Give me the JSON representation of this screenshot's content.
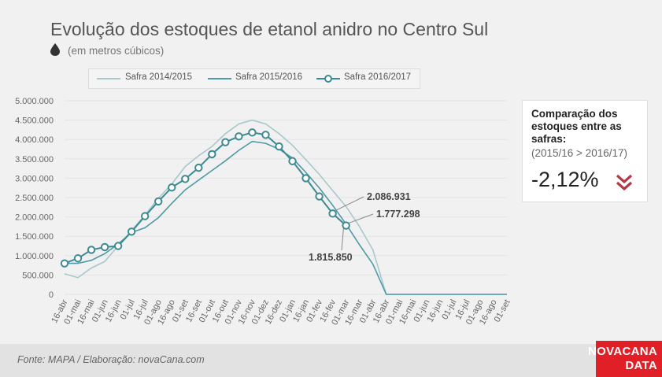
{
  "header": {
    "title": "Evolução dos estoques de etanol anidro no Centro Sul",
    "subtitle": "(em metros cúbicos)"
  },
  "comparison": {
    "title": "Comparação dos estoques entre as safras:",
    "subtitle": "(2015/16 > 2016/17)",
    "value": "-2,12%",
    "arrow_color": "#b03a48"
  },
  "footer": {
    "source": "Fonte: MAPA  / Elaboração: novaCana.com",
    "brand_line1": "NOVACANA",
    "brand_line2": "DATA",
    "brand_color": "#e01f26"
  },
  "chart_data": {
    "type": "line",
    "categories": [
      "16-abr",
      "01-mai",
      "16-mai",
      "01-jun",
      "16-jun",
      "01-jul",
      "16-jul",
      "01-ago",
      "16-ago",
      "01-set",
      "16-set",
      "01-out",
      "16-out",
      "01-nov",
      "16-nov",
      "01-dez",
      "16-dez",
      "01-jan",
      "16-jan",
      "01-fev",
      "16-fev",
      "01-mar",
      "16-mar",
      "01-abr",
      "16-abr",
      "01-mai",
      "16-mai",
      "01-jun",
      "16-jun",
      "01-jul",
      "16-jul",
      "01-ago",
      "16-ago",
      "01-set"
    ],
    "ylim": [
      0,
      5000000
    ],
    "yticks": [
      {
        "value": 0,
        "label": "0"
      },
      {
        "value": 500000,
        "label": "500.000"
      },
      {
        "value": 1000000,
        "label": "1.000.000"
      },
      {
        "value": 1500000,
        "label": "1.500.000"
      },
      {
        "value": 2000000,
        "label": "2.000.000"
      },
      {
        "value": 2500000,
        "label": "2.500.000"
      },
      {
        "value": 3000000,
        "label": "3.000.000"
      },
      {
        "value": 3500000,
        "label": "3.500.000"
      },
      {
        "value": 4000000,
        "label": "4.000.000"
      },
      {
        "value": 4500000,
        "label": "4.500.000"
      },
      {
        "value": 5000000,
        "label": "5.000.000"
      }
    ],
    "grid": true,
    "legend_position": "top",
    "series": [
      {
        "name": "Safra 2014/2015",
        "color": "#a8c8cc",
        "markers": false,
        "values": [
          530000,
          430000,
          680000,
          850000,
          1250000,
          1650000,
          2050000,
          2480000,
          2850000,
          3300000,
          3580000,
          3820000,
          4150000,
          4400000,
          4500000,
          4400000,
          4150000,
          3850000,
          3480000,
          3100000,
          2680000,
          2270000,
          1750000,
          1150000,
          0,
          0,
          0,
          0,
          0,
          0,
          0,
          0,
          0,
          0
        ]
      },
      {
        "name": "Safra 2015/2016",
        "color": "#4f9aa5",
        "markers": false,
        "values": [
          800000,
          800000,
          880000,
          1050000,
          1300000,
          1600000,
          1720000,
          1980000,
          2350000,
          2700000,
          2950000,
          3200000,
          3450000,
          3720000,
          3950000,
          3900000,
          3750000,
          3520000,
          3150000,
          2750000,
          2300000,
          1815850,
          1280000,
          780000,
          0,
          0,
          0,
          0,
          0,
          0,
          0,
          0,
          0,
          0
        ]
      },
      {
        "name": "Safra 2016/2017",
        "color": "#3e8a93",
        "markers": true,
        "values": [
          800000,
          930000,
          1150000,
          1220000,
          1250000,
          1620000,
          2020000,
          2400000,
          2760000,
          2980000,
          3270000,
          3620000,
          3930000,
          4080000,
          4180000,
          4120000,
          3820000,
          3440000,
          3000000,
          2530000,
          2086931,
          1777298,
          null,
          null,
          null,
          null,
          null,
          null,
          null,
          null,
          null,
          null,
          null,
          null
        ]
      }
    ],
    "annotations": [
      {
        "text": "2.086.931",
        "category": "16-fev",
        "value": 2086931
      },
      {
        "text": "1.777.298",
        "category": "01-mar",
        "value": 1777298
      },
      {
        "text": "1.815.850",
        "category": "01-mar",
        "value": 1815850
      }
    ]
  }
}
